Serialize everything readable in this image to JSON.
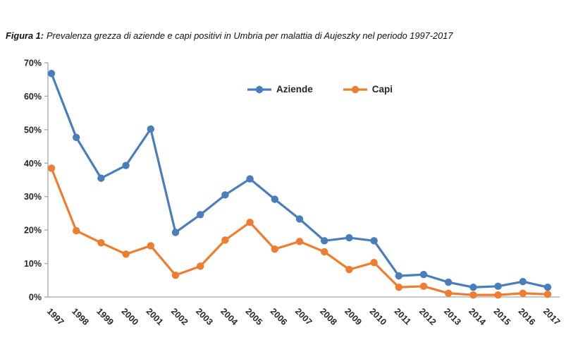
{
  "figure": {
    "title_prefix": "Figura 1:",
    "title_text": "Prevalenza grezza di aziende e capi positivi in Umbria per malattia di Aujeszky nel periodo 1997-2017"
  },
  "colors": {
    "background": "#ffffff",
    "axis_line": "#a6a6a6",
    "tick_label_text": "#262626",
    "caption_text": "#111111"
  },
  "chart_data": {
    "type": "line",
    "title": "",
    "xlabel": "",
    "ylabel": "",
    "grid": false,
    "legend_position": "top-center-inside",
    "marker": "circle",
    "x_tick_rotation_deg": 45,
    "ylim": [
      0,
      70
    ],
    "ytick_labels": [
      "0%",
      "10%",
      "20%",
      "30%",
      "40%",
      "50%",
      "60%",
      "70%"
    ],
    "categories": [
      "1997",
      "1998",
      "1999",
      "2000",
      "2001",
      "2002",
      "2003",
      "2004",
      "2005",
      "2006",
      "2007",
      "2008",
      "2009",
      "2010",
      "2011",
      "2012",
      "2013",
      "2014",
      "2015",
      "2016",
      "2017"
    ],
    "series": [
      {
        "name": "Aziende",
        "color": "#4a7ebb",
        "values": [
          66.8,
          47.7,
          35.5,
          39.3,
          50.2,
          19.3,
          24.6,
          30.5,
          35.3,
          29.2,
          23.3,
          16.8,
          17.7,
          16.8,
          6.3,
          6.7,
          4.4,
          2.9,
          3.2,
          4.6,
          2.9
        ]
      },
      {
        "name": "Capi",
        "color": "#ed7d31",
        "values": [
          38.5,
          19.8,
          16.2,
          12.8,
          15.3,
          6.5,
          9.2,
          17.0,
          22.3,
          14.3,
          16.6,
          13.5,
          8.2,
          10.3,
          2.9,
          3.2,
          1.1,
          0.6,
          0.6,
          1.1,
          0.8
        ]
      }
    ]
  }
}
